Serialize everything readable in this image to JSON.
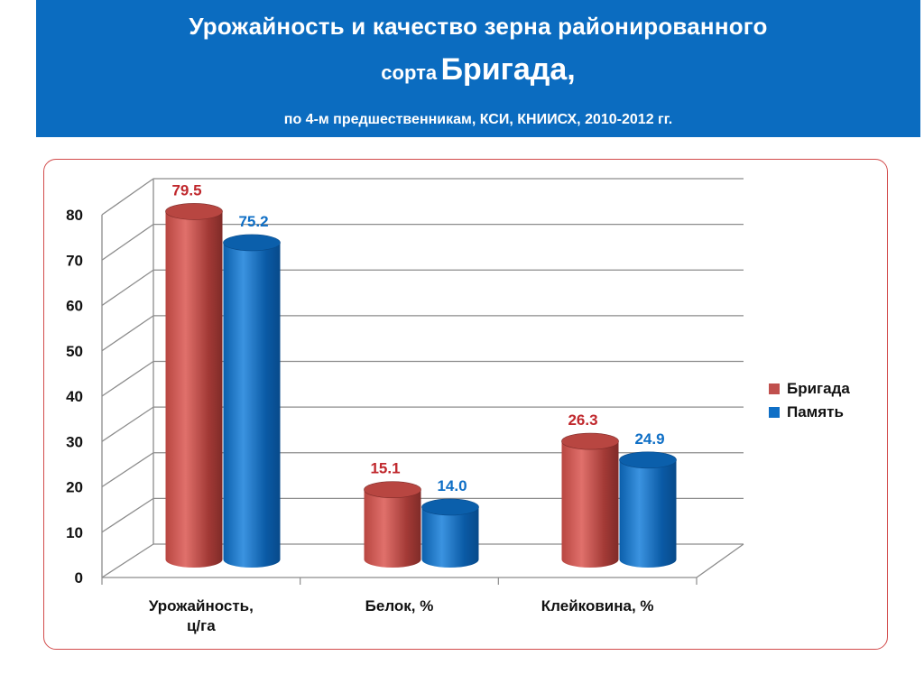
{
  "header": {
    "title_line1": "Урожайность и качество зерна районированного",
    "title_line2_prefix": "сорта",
    "title_line2_variety": "Бригада,",
    "subtitle": "по 4-м предшественникам,  КСИ, КНИИСХ, 2010-2012 гг."
  },
  "colors": {
    "header_bg": "#0b6cc0",
    "series_brigada": "#c0504d",
    "series_pamyat": "#0f6fc6",
    "frame_border": "#d24b4b"
  },
  "chart_data": {
    "type": "bar",
    "categories": [
      "Урожайность, ц/га",
      "Белок, %",
      "Клейковина, %"
    ],
    "category_lines": [
      [
        "Урожайность,",
        "ц/га"
      ],
      [
        "Белок, %"
      ],
      [
        "Клейковина, %"
      ]
    ],
    "series": [
      {
        "name": "Бригада",
        "values": [
          79.5,
          15.1,
          26.3
        ],
        "labels": [
          "79.5",
          "15.1",
          "26.3"
        ],
        "color": "#c0504d"
      },
      {
        "name": "Память",
        "values": [
          75.2,
          14.0,
          24.9
        ],
        "labels": [
          "75.2",
          "14.0",
          "24.9"
        ],
        "color": "#0f6fc6"
      }
    ],
    "y_ticks": [
      0,
      10,
      20,
      30,
      40,
      50,
      60,
      70,
      80
    ],
    "ylim": [
      0,
      80
    ],
    "grid": true,
    "legend_position": "right",
    "style": "3d-cylinder"
  }
}
